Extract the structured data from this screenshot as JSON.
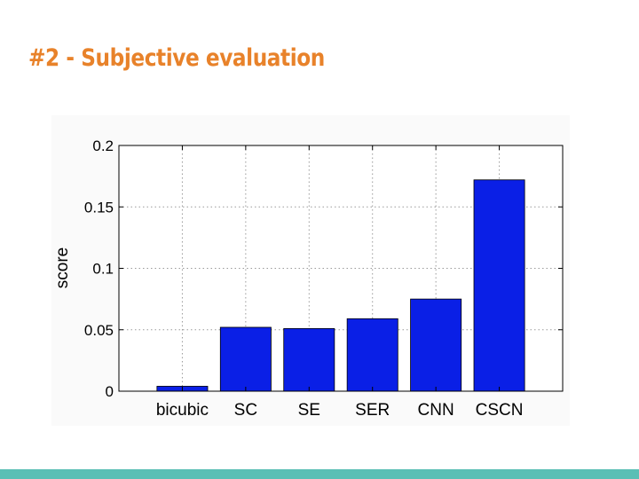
{
  "slide": {
    "title": "#2 - Subjective evaluation",
    "title_color": "#e8822a",
    "bottom_bar_color": "#5bbfb5"
  },
  "chart_data": {
    "type": "bar",
    "categories": [
      "bicubic",
      "SC",
      "SE",
      "SER",
      "CNN",
      "CSCN"
    ],
    "values": [
      0.004,
      0.052,
      0.051,
      0.059,
      0.075,
      0.172
    ],
    "ylabel": "score",
    "xlabel": "",
    "ylim": [
      0,
      0.2
    ],
    "yticks": [
      0,
      0.05,
      0.1,
      0.15,
      0.2
    ],
    "ytick_labels": [
      "0",
      "0.05",
      "0.1",
      "0.15",
      "0.2"
    ],
    "grid": true,
    "bar_color": "#0a1fe6"
  }
}
